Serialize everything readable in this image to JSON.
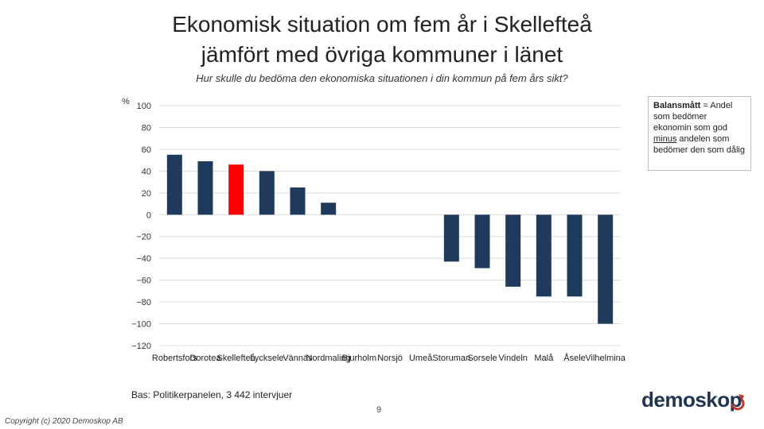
{
  "slide": {
    "title_line1": "Ekonomisk situation om fem år i Skellefteå",
    "title_line2": "jämfört med övriga kommuner i länet",
    "subtitle": "Hur skulle du bedöma den ekonomiska situationen i din kommun på fem års sikt?",
    "note": {
      "bold": "Balansmått",
      "part1": " = Andel som bedömer ekonomin som god ",
      "underlined": "minus",
      "part2": " andelen som bedömer den som dålig"
    },
    "base": "Bas: Politikerpanelen, 3 442 intervjuer",
    "page_number": "9",
    "copyright": "Copyright (c) 2020 Demoskop AB",
    "logo": "demoskop"
  },
  "colors": {
    "bar": "#1f3a5c",
    "highlight": "#ff0000",
    "grid": "#d9d9d9"
  },
  "chart_data": {
    "type": "bar",
    "title": "Ekonomisk situation om fem år i Skellefteå jämfört med övriga kommuner i länet",
    "ylabel": "%",
    "ylim": [
      -120,
      100
    ],
    "yticks": [
      100,
      80,
      60,
      40,
      20,
      0,
      -20,
      -40,
      -60,
      -80,
      -100,
      -120
    ],
    "ytick_labels": [
      "100",
      "80",
      "60",
      "40",
      "20",
      "0",
      "−20",
      "−40",
      "−60",
      "−80",
      "−100",
      "−120"
    ],
    "grid": true,
    "highlight": "Skellefteå",
    "categories": [
      "Robertsfors",
      "Dorotea",
      "Skellefteå",
      "Lycksele",
      "Vännäs",
      "Nordmaling",
      "Bjurholm",
      "Norsjö",
      "Umeå",
      "Storuman",
      "Sorsele",
      "Vindeln",
      "Malå",
      "Åsele",
      "Vilhelmina"
    ],
    "values": [
      55,
      49,
      46,
      40,
      25,
      11,
      0,
      0,
      0,
      -43,
      -49,
      -66,
      -75,
      -75,
      -100
    ]
  }
}
